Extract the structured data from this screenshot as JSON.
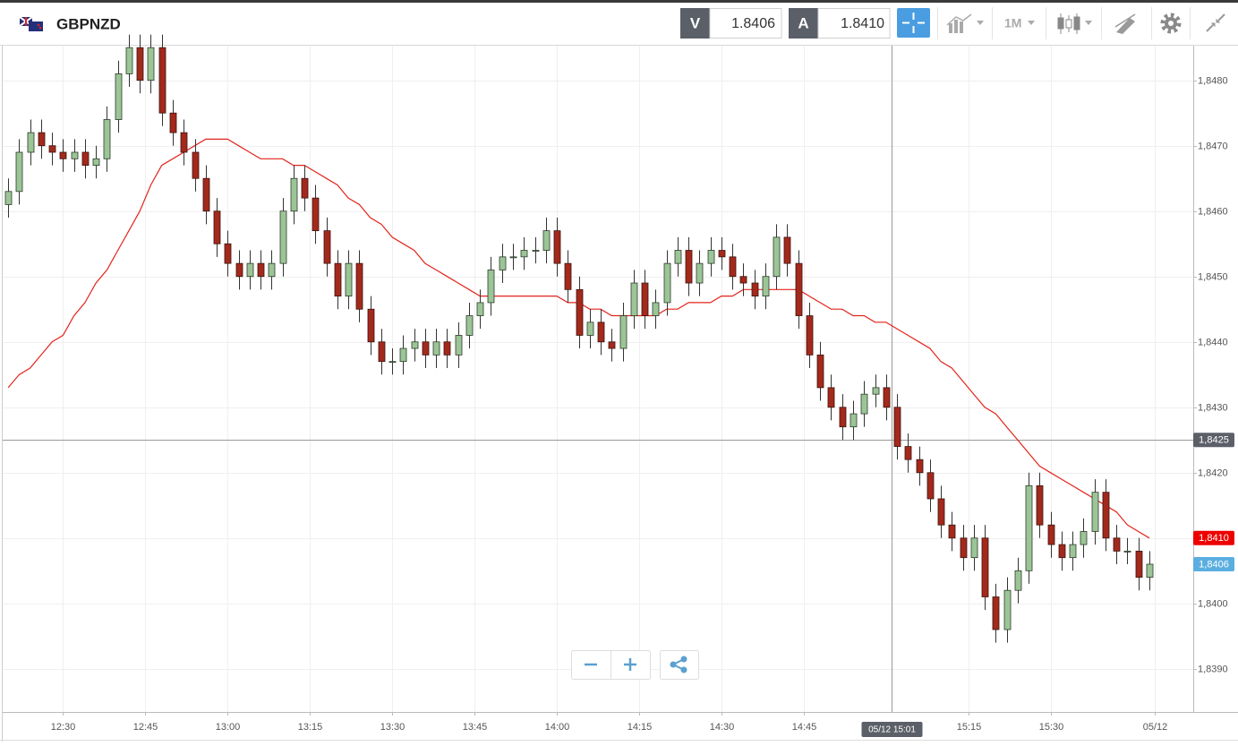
{
  "header": {
    "symbol": "GBPNZD",
    "bid_label": "V",
    "bid": "1.8406",
    "ask_label": "A",
    "ask": "1.8410",
    "period": "1M"
  },
  "chart_data": {
    "type": "candlestick",
    "categories": [
      "12:20",
      "12:22",
      "12:24",
      "12:26",
      "12:28",
      "12:30",
      "12:32",
      "12:34",
      "12:36",
      "12:38",
      "12:40",
      "12:42",
      "12:44",
      "12:46",
      "12:48",
      "12:50",
      "12:52",
      "12:54",
      "12:56",
      "12:58",
      "13:00",
      "13:02",
      "13:04",
      "13:06",
      "13:08",
      "13:10",
      "13:12",
      "13:14",
      "13:16",
      "13:18",
      "13:20",
      "13:22",
      "13:24",
      "13:26",
      "13:28",
      "13:30",
      "13:32",
      "13:34",
      "13:36",
      "13:38",
      "13:40",
      "13:42",
      "13:44",
      "13:46",
      "13:48",
      "13:50",
      "13:52",
      "13:54",
      "13:56",
      "13:58",
      "14:00",
      "14:02",
      "14:04",
      "14:06",
      "14:08",
      "14:10",
      "14:12",
      "14:14",
      "14:16",
      "14:18",
      "14:20",
      "14:22",
      "14:24",
      "14:26",
      "14:28",
      "14:30",
      "14:32",
      "14:34",
      "14:36",
      "14:38",
      "14:40",
      "14:42",
      "14:44",
      "14:46",
      "14:48",
      "14:50",
      "14:52",
      "14:54",
      "14:56",
      "14:58",
      "15:00",
      "15:02",
      "15:04",
      "15:06",
      "15:08",
      "15:10",
      "15:12",
      "15:14",
      "15:16",
      "15:18",
      "15:20",
      "15:22",
      "15:24",
      "15:26",
      "15:28",
      "15:30",
      "15:32",
      "15:34",
      "15:36",
      "15:38",
      "15:40",
      "15:42",
      "15:44",
      "15:46",
      "15:48"
    ],
    "open": [
      1.8461,
      1.8463,
      1.8469,
      1.8472,
      1.847,
      1.8469,
      1.8468,
      1.8469,
      1.8467,
      1.8468,
      1.8474,
      1.8481,
      1.8485,
      1.848,
      1.8485,
      1.8475,
      1.8472,
      1.8469,
      1.8465,
      1.846,
      1.8455,
      1.8452,
      1.845,
      1.8452,
      1.845,
      1.8452,
      1.846,
      1.8465,
      1.8462,
      1.8457,
      1.8452,
      1.8447,
      1.8452,
      1.8445,
      1.844,
      1.8437,
      1.8437,
      1.8439,
      1.844,
      1.8438,
      1.844,
      1.8438,
      1.8441,
      1.8444,
      1.8446,
      1.8451,
      1.8453,
      1.8453,
      1.8454,
      1.8454,
      1.8457,
      1.8452,
      1.8448,
      1.8441,
      1.8443,
      1.844,
      1.8439,
      1.8444,
      1.8449,
      1.8444,
      1.8446,
      1.8452,
      1.8454,
      1.8449,
      1.8452,
      1.8454,
      1.8453,
      1.845,
      1.8449,
      1.8447,
      1.845,
      1.8456,
      1.8452,
      1.8444,
      1.8438,
      1.8433,
      1.843,
      1.8427,
      1.8429,
      1.8432,
      1.8433,
      1.843,
      1.8424,
      1.8422,
      1.842,
      1.8416,
      1.8412,
      1.841,
      1.8407,
      1.841,
      1.8401,
      1.8396,
      1.8402,
      1.8405,
      1.8418,
      1.8412,
      1.8409,
      1.8407,
      1.8409,
      1.8411,
      1.8417,
      1.841,
      1.8408,
      1.8408,
      1.8404
    ],
    "high": [
      1.8465,
      1.8471,
      1.8474,
      1.8474,
      1.8472,
      1.8471,
      1.8471,
      1.8471,
      1.847,
      1.8476,
      1.8483,
      1.8487,
      1.8487,
      1.8487,
      1.8487,
      1.8477,
      1.8474,
      1.8471,
      1.8467,
      1.8462,
      1.8457,
      1.8454,
      1.8454,
      1.8454,
      1.8454,
      1.8462,
      1.8467,
      1.8467,
      1.8464,
      1.8459,
      1.8454,
      1.8454,
      1.8454,
      1.8447,
      1.8442,
      1.8439,
      1.8441,
      1.8442,
      1.8442,
      1.8442,
      1.8442,
      1.8443,
      1.8446,
      1.8448,
      1.8453,
      1.8455,
      1.8455,
      1.8456,
      1.8456,
      1.8459,
      1.8459,
      1.8454,
      1.845,
      1.8445,
      1.8445,
      1.8442,
      1.8446,
      1.8451,
      1.8451,
      1.8448,
      1.8454,
      1.8456,
      1.8456,
      1.8454,
      1.8456,
      1.8456,
      1.8455,
      1.8452,
      1.8451,
      1.8452,
      1.8458,
      1.8458,
      1.8454,
      1.8446,
      1.844,
      1.8435,
      1.8432,
      1.8431,
      1.8434,
      1.8435,
      1.8435,
      1.8432,
      1.8426,
      1.8424,
      1.8422,
      1.8418,
      1.8414,
      1.8412,
      1.8412,
      1.8412,
      1.8403,
      1.8404,
      1.8407,
      1.842,
      1.842,
      1.8414,
      1.8411,
      1.8411,
      1.8413,
      1.8419,
      1.8419,
      1.8412,
      1.841,
      1.841,
      1.8408
    ],
    "low": [
      1.8459,
      1.8461,
      1.8467,
      1.8468,
      1.8467,
      1.8466,
      1.8466,
      1.8465,
      1.8465,
      1.8466,
      1.8472,
      1.8479,
      1.8478,
      1.8478,
      1.8473,
      1.847,
      1.8467,
      1.8463,
      1.8458,
      1.8453,
      1.845,
      1.8448,
      1.8448,
      1.8448,
      1.8448,
      1.845,
      1.8458,
      1.846,
      1.8455,
      1.845,
      1.8445,
      1.8445,
      1.8443,
      1.8438,
      1.8435,
      1.8435,
      1.8435,
      1.8437,
      1.8436,
      1.8436,
      1.8436,
      1.8436,
      1.8439,
      1.8442,
      1.8444,
      1.8449,
      1.8451,
      1.8451,
      1.8452,
      1.8452,
      1.845,
      1.8446,
      1.8439,
      1.8439,
      1.8438,
      1.8437,
      1.8437,
      1.8442,
      1.8442,
      1.8442,
      1.8444,
      1.845,
      1.8447,
      1.8447,
      1.845,
      1.8451,
      1.8448,
      1.8447,
      1.8445,
      1.8445,
      1.8448,
      1.845,
      1.8442,
      1.8436,
      1.8431,
      1.8428,
      1.8425,
      1.8425,
      1.8427,
      1.843,
      1.8428,
      1.8422,
      1.842,
      1.8418,
      1.8414,
      1.841,
      1.8408,
      1.8405,
      1.8405,
      1.8399,
      1.8394,
      1.8394,
      1.84,
      1.8403,
      1.841,
      1.8407,
      1.8405,
      1.8405,
      1.8407,
      1.8409,
      1.8408,
      1.8406,
      1.8406,
      1.8402,
      1.8402
    ],
    "close": [
      1.8463,
      1.8469,
      1.8472,
      1.847,
      1.8469,
      1.8468,
      1.8469,
      1.8467,
      1.8468,
      1.8474,
      1.8481,
      1.8485,
      1.848,
      1.8485,
      1.8475,
      1.8472,
      1.8469,
      1.8465,
      1.846,
      1.8455,
      1.8452,
      1.845,
      1.8452,
      1.845,
      1.8452,
      1.846,
      1.8465,
      1.8462,
      1.8457,
      1.8452,
      1.8447,
      1.8452,
      1.8445,
      1.844,
      1.8437,
      1.8437,
      1.8439,
      1.844,
      1.8438,
      1.844,
      1.8438,
      1.8441,
      1.8444,
      1.8446,
      1.8451,
      1.8453,
      1.8453,
      1.8454,
      1.8454,
      1.8457,
      1.8452,
      1.8448,
      1.8441,
      1.8443,
      1.844,
      1.8439,
      1.8444,
      1.8449,
      1.8444,
      1.8446,
      1.8452,
      1.8454,
      1.8449,
      1.8452,
      1.8454,
      1.8453,
      1.845,
      1.8449,
      1.8447,
      1.845,
      1.8456,
      1.8452,
      1.8444,
      1.8438,
      1.8433,
      1.843,
      1.8427,
      1.8429,
      1.8432,
      1.8433,
      1.843,
      1.8424,
      1.8422,
      1.842,
      1.8416,
      1.8412,
      1.841,
      1.8407,
      1.841,
      1.8401,
      1.8396,
      1.8402,
      1.8405,
      1.8418,
      1.8412,
      1.8409,
      1.8407,
      1.8409,
      1.8411,
      1.8417,
      1.841,
      1.8408,
      1.8408,
      1.8404,
      1.8406
    ],
    "up_color": "#9cc597",
    "down_color": "#a3291c",
    "moving_average": {
      "color": "#e3241b",
      "values": [
        1.8433,
        1.8435,
        1.8436,
        1.8438,
        1.844,
        1.8441,
        1.8444,
        1.8446,
        1.8449,
        1.8451,
        1.8454,
        1.8457,
        1.846,
        1.8464,
        1.8467,
        1.8468,
        1.8469,
        1.847,
        1.8471,
        1.8471,
        1.8471,
        1.847,
        1.8469,
        1.8468,
        1.8468,
        1.8468,
        1.8467,
        1.8467,
        1.8466,
        1.8465,
        1.8464,
        1.8462,
        1.8461,
        1.8459,
        1.8458,
        1.8456,
        1.8455,
        1.8454,
        1.8452,
        1.8451,
        1.845,
        1.8449,
        1.8448,
        1.8447,
        1.8447,
        1.8447,
        1.8447,
        1.8447,
        1.8447,
        1.8447,
        1.8447,
        1.8446,
        1.8446,
        1.8445,
        1.8445,
        1.8444,
        1.8444,
        1.8444,
        1.8444,
        1.8444,
        1.8445,
        1.8445,
        1.8446,
        1.8446,
        1.8446,
        1.8447,
        1.8447,
        1.8448,
        1.8448,
        1.8448,
        1.8448,
        1.8448,
        1.8448,
        1.8447,
        1.8446,
        1.8445,
        1.8445,
        1.8444,
        1.8444,
        1.8443,
        1.8443,
        1.8442,
        1.8441,
        1.844,
        1.8439,
        1.8437,
        1.8436,
        1.8434,
        1.8432,
        1.843,
        1.8429,
        1.8427,
        1.8425,
        1.8423,
        1.8421,
        1.842,
        1.8419,
        1.8418,
        1.8417,
        1.8416,
        1.8415,
        1.8414,
        1.8412,
        1.8411,
        1.841
      ]
    },
    "xlim": [
      "12:19",
      "15:56"
    ],
    "xticks": [
      "12:30",
      "12:45",
      "13:00",
      "13:15",
      "13:30",
      "13:45",
      "14:00",
      "14:15",
      "14:30",
      "14:45",
      "15:15",
      "15:30",
      {
        "value": "15:49",
        "label": "05/12"
      }
    ],
    "ylim": [
      1.83834,
      1.84853
    ],
    "yticks": [
      {
        "value": 1.839,
        "label": "1,8390"
      },
      {
        "value": 1.84,
        "label": "1,8400"
      },
      {
        "value": 1.841,
        "label": "1,8410"
      },
      {
        "value": 1.842,
        "label": "1,8420"
      },
      {
        "value": 1.843,
        "label": "1,8430"
      },
      {
        "value": 1.844,
        "label": "1,8440"
      },
      {
        "value": 1.845,
        "label": "1,8450"
      },
      {
        "value": 1.846,
        "label": "1,8460"
      },
      {
        "value": 1.847,
        "label": "1,8470"
      },
      {
        "value": 1.848,
        "label": "1,8480"
      }
    ],
    "grid": true,
    "crosshair": {
      "y": {
        "value": 1.8425,
        "label": "1,8425"
      },
      "x": {
        "value": "15:01",
        "label": "05/12 15:01"
      }
    },
    "price_labels": [
      {
        "value": 1.841,
        "label": "1,8410",
        "color": "#ee0000"
      },
      {
        "value": 1.8406,
        "label": "1,8406",
        "color": "#5aaee0"
      }
    ]
  }
}
